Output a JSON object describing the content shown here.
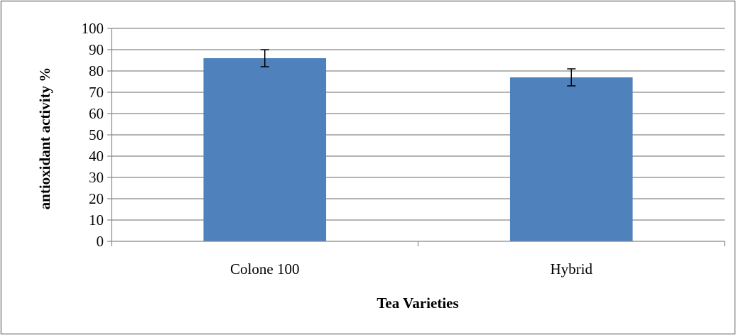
{
  "chart_data": {
    "type": "bar",
    "categories": [
      "Colone 100",
      "Hybrid"
    ],
    "values": [
      86,
      77
    ],
    "error": [
      4,
      4
    ],
    "xlabel": "Tea Varieties",
    "ylabel": "antioxidant activity %",
    "ylim": [
      0,
      100
    ],
    "ytick_step": 10,
    "grid": true,
    "legend": "none",
    "colors": {
      "bar": "#4f81bd",
      "grid": "#868686",
      "axis": "#868686",
      "border": "#868686",
      "error_bar": "#000000"
    }
  }
}
